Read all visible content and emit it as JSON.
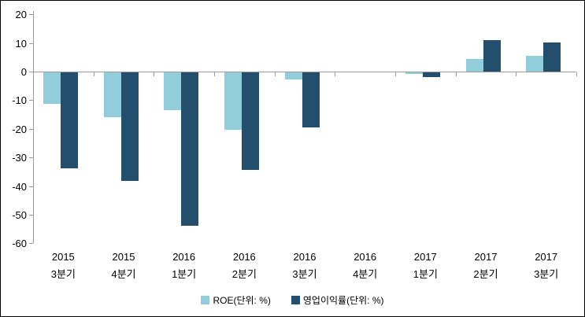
{
  "chart_data": {
    "type": "bar",
    "title": "",
    "categories": [
      {
        "line1": "2015",
        "line2": "3분기"
      },
      {
        "line1": "2015",
        "line2": "4분기"
      },
      {
        "line1": "2016",
        "line2": "1분기"
      },
      {
        "line1": "2016",
        "line2": "2분기"
      },
      {
        "line1": "2016",
        "line2": "3분기"
      },
      {
        "line1": "2016",
        "line2": "4분기"
      },
      {
        "line1": "2017",
        "line2": "1분기"
      },
      {
        "line1": "2017",
        "line2": "2분기"
      },
      {
        "line1": "2017",
        "line2": "3분기"
      }
    ],
    "series": [
      {
        "name": "ROE(단위: %)",
        "color": "#92CDDC",
        "values": [
          -10.9,
          -15.6,
          -13.1,
          -20.0,
          -2.6,
          0,
          -0.6,
          4.3,
          5.4
        ]
      },
      {
        "name": "영업이익률(단위: %)",
        "color": "#234F6D",
        "values": [
          -33.6,
          -38.0,
          -53.7,
          -34.1,
          -19.3,
          0,
          -1.7,
          10.9,
          10.2
        ]
      }
    ],
    "ylim": [
      -60,
      20
    ],
    "ytick_step": 10,
    "ytick_labels": [
      "20",
      "10",
      "0",
      "-10",
      "-20",
      "-30",
      "-40",
      "-50",
      "-60"
    ],
    "grid": false,
    "legend_position": "bottom",
    "axis_color": "#9a9a9a",
    "text_color": "#000000"
  }
}
